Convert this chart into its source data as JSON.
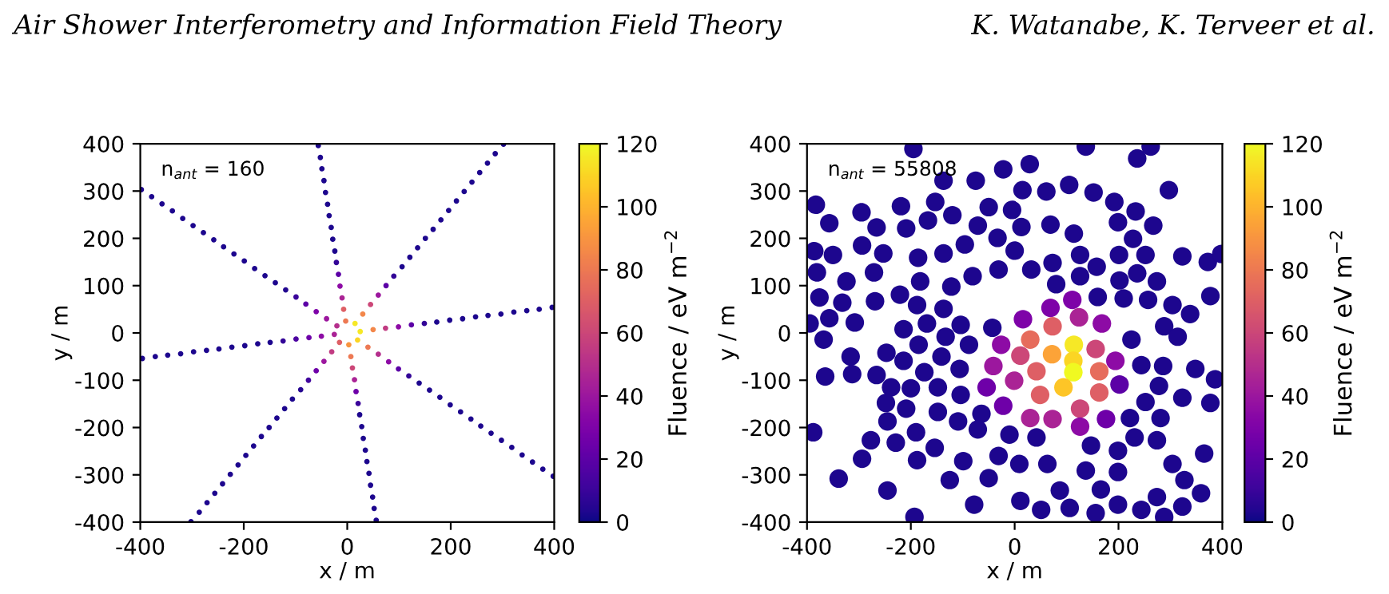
{
  "chart_data": [
    {
      "type": "scatter",
      "xlabel": "x / m",
      "ylabel": "y / m",
      "clabel": "Fluence / eV m$^{−2}$",
      "xlim": [
        -400,
        400
      ],
      "ylim": [
        -400,
        400
      ],
      "xticks": [
        -400,
        -200,
        0,
        200,
        400
      ],
      "yticks": [
        -400,
        -300,
        -200,
        -100,
        0,
        100,
        200,
        300,
        400
      ],
      "clim": [
        0,
        120
      ],
      "cticks": [
        0,
        20,
        40,
        60,
        80,
        100,
        120
      ],
      "grid": false,
      "legend": false,
      "marker": "circle",
      "annotations": [
        "n$_{ant}$ = 160",
        "Air Shower Interferometry and Information Field Theory"
      ],
      "x": [
        -3,
        -7,
        -10,
        -14,
        -17,
        -21,
        -24,
        -28,
        -31,
        -35,
        -38,
        -42,
        -45,
        -49,
        -52,
        -56,
        3,
        7,
        10,
        14,
        17,
        21,
        24,
        28,
        31,
        35,
        38,
        42,
        45,
        49,
        52,
        56,
        15,
        30,
        45,
        60,
        75,
        90,
        106,
        121,
        136,
        151,
        166,
        181,
        196,
        211,
        226,
        241,
        256,
        271,
        286,
        302,
        -15,
        -30,
        -45,
        -60,
        -75,
        -90,
        -106,
        -121,
        -136,
        -151,
        -166,
        -181,
        -196,
        -211,
        -226,
        -241,
        -256,
        -271,
        -286,
        -302,
        -20,
        -40,
        -60,
        -80,
        -99,
        -119,
        -139,
        -159,
        -179,
        -199,
        -219,
        -239,
        -258,
        -278,
        -298,
        -318,
        -338,
        -358,
        -378,
        -398,
        20,
        40,
        60,
        80,
        99,
        119,
        139,
        159,
        179,
        199,
        219,
        239,
        258,
        278,
        298,
        318,
        338,
        358,
        378,
        398,
        25,
        50,
        74,
        99,
        124,
        149,
        173,
        198,
        223,
        248,
        272,
        297,
        322,
        347,
        371,
        396,
        -25,
        -50,
        -74,
        -99,
        -124,
        -149,
        -173,
        -198,
        -223,
        -248,
        -272,
        -297,
        -322,
        -347,
        -371,
        -396
      ],
      "values": [
        25,
        50,
        74,
        99,
        124,
        149,
        173,
        198,
        223,
        248,
        272,
        297,
        322,
        347,
        371,
        396,
        -25,
        -50,
        -74,
        -99,
        -124,
        -149,
        -173,
        -198,
        -223,
        -248,
        -272,
        -297,
        -322,
        -347,
        -371,
        -396,
        20,
        40,
        60,
        80,
        100,
        120,
        140,
        160,
        180,
        200,
        219,
        239,
        259,
        279,
        299,
        319,
        339,
        359,
        379,
        399,
        -20,
        -40,
        -60,
        -80,
        -100,
        -120,
        -140,
        -160,
        -180,
        -200,
        -219,
        -239,
        -259,
        -279,
        -299,
        -319,
        -339,
        -359,
        -379,
        -399,
        15,
        30,
        45,
        61,
        76,
        91,
        106,
        121,
        136,
        152,
        167,
        182,
        197,
        212,
        227,
        242,
        258,
        273,
        288,
        303,
        -15,
        -30,
        -45,
        -61,
        -76,
        -91,
        -106,
        -121,
        -136,
        -152,
        -167,
        -182,
        -197,
        -212,
        -227,
        -242,
        -258,
        -273,
        -288,
        -303,
        3,
        7,
        10,
        13,
        17,
        20,
        23,
        27,
        30,
        34,
        37,
        40,
        44,
        47,
        50,
        54,
        -3,
        -7,
        -10,
        -13,
        -17,
        -20,
        -23,
        -27,
        -30,
        -34,
        -37,
        -40,
        -44,
        -47,
        -50,
        -54
      ],
      "cvalues": [
        80,
        70,
        45,
        35,
        20,
        8,
        3,
        3,
        3,
        3,
        3,
        3,
        3,
        3,
        3,
        3,
        90,
        80,
        60,
        45,
        25,
        10,
        3,
        3,
        3,
        3,
        3,
        3,
        3,
        3,
        3,
        3,
        115,
        85,
        60,
        40,
        20,
        8,
        3,
        3,
        3,
        3,
        3,
        3,
        3,
        3,
        3,
        3,
        3,
        3,
        3,
        3,
        70,
        55,
        40,
        25,
        12,
        5,
        3,
        3,
        3,
        3,
        3,
        3,
        3,
        3,
        3,
        3,
        3,
        3,
        3,
        3,
        50,
        40,
        30,
        20,
        10,
        4,
        3,
        3,
        3,
        3,
        3,
        3,
        3,
        3,
        3,
        3,
        3,
        3,
        3,
        3,
        110,
        80,
        50,
        35,
        20,
        8,
        3,
        3,
        3,
        3,
        3,
        3,
        3,
        3,
        3,
        3,
        3,
        3,
        3,
        3,
        115,
        85,
        55,
        35,
        20,
        8,
        3,
        3,
        3,
        3,
        3,
        3,
        3,
        3,
        3,
        3,
        45,
        35,
        25,
        15,
        8,
        3,
        3,
        3,
        3,
        3,
        3,
        3,
        3,
        3,
        3,
        3
      ]
    },
    {
      "type": "scatter",
      "xlabel": "x / m",
      "ylabel": "y / m",
      "clabel": "Fluence / eV m$^{−2}$",
      "xlim": [
        -400,
        400
      ],
      "ylim": [
        -400,
        400
      ],
      "xticks": [
        -400,
        -200,
        0,
        200,
        400
      ],
      "yticks": [
        -400,
        -300,
        -200,
        -100,
        0,
        100,
        200,
        300,
        400
      ],
      "clim": [
        0,
        120
      ],
      "cticks": [
        0,
        20,
        40,
        60,
        80,
        100,
        120
      ],
      "grid": false,
      "legend": false,
      "marker": "circle",
      "annotations": [
        "n$_{ant}$ = 55808",
        "K. Watanabe, K. Terveer et al."
      ],
      "x": [
        -195,
        137,
        236,
        262,
        -22,
        29,
        -137,
        -75,
        105,
        15,
        61,
        152,
        297,
        -383,
        -295,
        -219,
        -153,
        -50,
        -5,
        192,
        233,
        -357,
        -266,
        -209,
        -167,
        -120,
        -71,
        13,
        69,
        114,
        199,
        267,
        -386,
        -350,
        -294,
        -253,
        -186,
        -137,
        -96,
        -33,
        0,
        73,
        126,
        201,
        228,
        252,
        323,
        372,
        398,
        -381,
        -324,
        -271,
        -182,
        -122,
        -81,
        -31,
        32,
        80,
        126,
        158,
        202,
        236,
        274,
        -376,
        -332,
        -269,
        -221,
        -188,
        -137,
        69,
        111,
        160,
        210,
        257,
        304,
        338,
        377,
        -395,
        -357,
        -308,
        -214,
        -169,
        -104,
        -43,
        16,
        124,
        168,
        288,
        -368,
        -247,
        -185,
        -133,
        -88,
        -26,
        30,
        73,
        114,
        156,
        225,
        314,
        -316,
        -214,
        -141,
        -41,
        11,
        72,
        113,
        194,
        244,
        286,
        348,
        -365,
        -313,
        -266,
        -174,
        -106,
        42,
        113,
        163,
        202,
        278,
        386,
        -238,
        -200,
        -148,
        -104,
        -54,
        -1,
        49,
        94,
        163,
        252,
        323,
        377,
        -248,
        -209,
        -148,
        -64,
        -22,
        30,
        73,
        126,
        176,
        222,
        281,
        -388,
        -245,
        -190,
        -109,
        -71,
        -10,
        42,
        126,
        231,
        274,
        -277,
        -229,
        -154,
        -31,
        9,
        63,
        147,
        199,
        -294,
        -188,
        -99,
        137,
        199,
        304,
        365,
        -339,
        -125,
        -50,
        87,
        166,
        327,
        -245,
        11,
        51,
        106,
        156,
        199,
        244,
        274,
        323,
        359,
        -78,
        -193,
        288
      ],
      "values": [
        389,
        394,
        369,
        394,
        346,
        357,
        322,
        322,
        313,
        302,
        299,
        297,
        302,
        271,
        255,
        268,
        277,
        266,
        260,
        277,
        257,
        232,
        223,
        221,
        238,
        249,
        227,
        224,
        229,
        210,
        234,
        227,
        173,
        165,
        185,
        168,
        159,
        168,
        187,
        201,
        174,
        148,
        165,
        165,
        199,
        165,
        162,
        150,
        167,
        128,
        109,
        128,
        109,
        98,
        120,
        134,
        134,
        103,
        120,
        140,
        111,
        126,
        109,
        75,
        64,
        67,
        81,
        59,
        51,
        53,
        70,
        76,
        73,
        70,
        59,
        40,
        78,
        20,
        31,
        22,
        8,
        20,
        17,
        11,
        29,
        33,
        20,
        14,
        -14,
        -42,
        -25,
        -8,
        -25,
        -25,
        -14,
        14,
        -25,
        -34,
        -14,
        -8,
        -50,
        -59,
        -50,
        -70,
        -48,
        -45,
        -59,
        -59,
        -68,
        -70,
        -76,
        -92,
        -87,
        -89,
        -83,
        -76,
        -81,
        -83,
        -81,
        -109,
        -112,
        -98,
        -115,
        -117,
        -115,
        -131,
        -115,
        -101,
        -131,
        -115,
        -126,
        -146,
        -137,
        -148,
        -148,
        -160,
        -167,
        -171,
        -154,
        -180,
        -182,
        -160,
        -182,
        -180,
        -180,
        -210,
        -187,
        -210,
        -187,
        -204,
        -215,
        -221,
        -198,
        -221,
        -227,
        -227,
        -232,
        -243,
        -260,
        -277,
        -277,
        -238,
        -249,
        -266,
        -269,
        -271,
        -291,
        -294,
        -277,
        -255,
        -308,
        -311,
        -307,
        -333,
        -331,
        -311,
        -333,
        -355,
        -374,
        -370,
        -381,
        -363,
        -374,
        -347,
        -367,
        -339,
        -363,
        -389,
        -389
      ],
      "cvalues": [
        3,
        3,
        3,
        3,
        3,
        3,
        3,
        3,
        3,
        3,
        3,
        3,
        3,
        3,
        3,
        3,
        3,
        3,
        3,
        3,
        3,
        3,
        3,
        3,
        3,
        3,
        3,
        3,
        3,
        3,
        3,
        3,
        3,
        3,
        3,
        3,
        3,
        3,
        3,
        3,
        3,
        3,
        3,
        3,
        3,
        3,
        3,
        3,
        3,
        3,
        3,
        3,
        3,
        3,
        3,
        3,
        3,
        3,
        3,
        3,
        3,
        3,
        3,
        3,
        3,
        3,
        3,
        3,
        3,
        30,
        30,
        3,
        3,
        3,
        3,
        3,
        3,
        3,
        3,
        3,
        3,
        3,
        3,
        3,
        30,
        45,
        35,
        3,
        3,
        3,
        3,
        3,
        3,
        35,
        75,
        70,
        115,
        60,
        3,
        3,
        3,
        3,
        3,
        40,
        60,
        95,
        110,
        35,
        3,
        3,
        3,
        3,
        3,
        3,
        3,
        3,
        70,
        120,
        75,
        20,
        3,
        3,
        3,
        3,
        3,
        3,
        25,
        45,
        70,
        105,
        70,
        3,
        3,
        3,
        3,
        3,
        3,
        3,
        25,
        45,
        45,
        60,
        25,
        3,
        3,
        3,
        3,
        3,
        3,
        3,
        3,
        3,
        35,
        3,
        3,
        3,
        3,
        3,
        3,
        3,
        3,
        3,
        3,
        3,
        3,
        3,
        3,
        3,
        3,
        3,
        3,
        3,
        3,
        3,
        3,
        3,
        3,
        3,
        3,
        3,
        3,
        3,
        3,
        3,
        3,
        3,
        3,
        3,
        3
      ]
    }
  ]
}
